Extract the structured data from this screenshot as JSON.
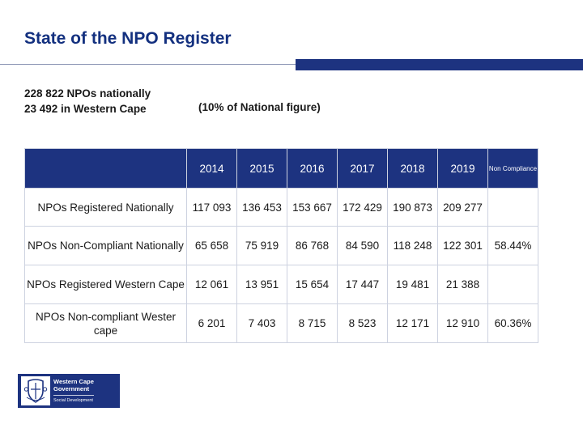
{
  "title": "State of the NPO Register",
  "stats": {
    "national": "228 822 NPOs nationally",
    "western_cape": "23 492 in Western Cape",
    "note": "(10% of National figure)"
  },
  "table": {
    "columns": [
      "2014",
      "2015",
      "2016",
      "2017",
      "2018",
      "2019",
      "Non Compliance"
    ],
    "rows": [
      {
        "label": "NPOs Registered Nationally",
        "cells": [
          "117 093",
          "136 453",
          "153 667",
          "172 429",
          "190 873",
          "209 277",
          ""
        ]
      },
      {
        "label": "NPOs Non-Compliant Nationally",
        "cells": [
          "65 658",
          "75 919",
          "86 768",
          "84 590",
          "118 248",
          "122 301",
          "58.44%"
        ]
      },
      {
        "label": "NPOs Registered Western Cape",
        "cells": [
          "12 061",
          "13 951",
          "15 654",
          "17 447",
          "19 481",
          "21 388",
          ""
        ]
      },
      {
        "label": "NPOs Non-compliant Wester cape",
        "cells": [
          "6 201",
          "7 403",
          "8 715",
          "8 523",
          "12 171",
          "12 910",
          "60.36%"
        ]
      }
    ]
  },
  "logo": {
    "line1": "Western Cape",
    "line2": "Government",
    "line3": "Social Development"
  },
  "colors": {
    "brand": "#1d3380",
    "title": "#13307f",
    "border": "#cdd2e0"
  }
}
